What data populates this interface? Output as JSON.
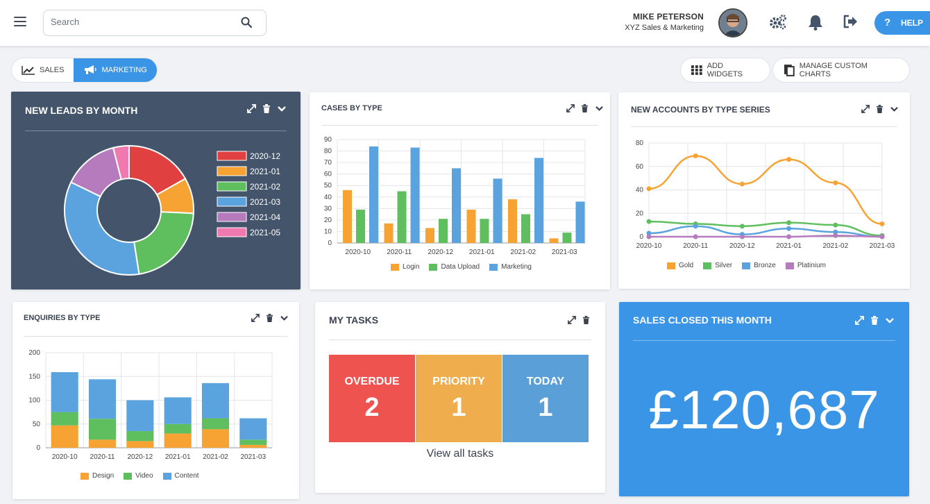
{
  "header": {
    "search_placeholder": "Search",
    "user_name": "MIKE PETERSON",
    "company": "XYZ Sales & Marketing",
    "help_label": "HELP"
  },
  "toolbar": {
    "tabs": [
      {
        "label": "SALES"
      },
      {
        "label": "MARKETING"
      }
    ],
    "add_widgets": "ADD WIDGETS",
    "manage_charts": "MANAGE CUSTOM CHARTS"
  },
  "widgets": {
    "leads": {
      "title": "NEW LEADS BY MONTH"
    },
    "cases": {
      "title": "CASES BY TYPE"
    },
    "accounts": {
      "title": "NEW ACCOUNTS BY TYPE SERIES"
    },
    "enquiries": {
      "title": "ENQUIRIES BY TYPE"
    },
    "tasks": {
      "title": "MY TASKS",
      "items": [
        {
          "label": "OVERDUE",
          "count": "2",
          "color": "#ef5350"
        },
        {
          "label": "PRIORITY",
          "count": "1",
          "color": "#f0ad4e"
        },
        {
          "label": "TODAY",
          "count": "1",
          "color": "#5b9fd9"
        }
      ],
      "view_all": "View all tasks"
    },
    "sales": {
      "title": "SALES CLOSED THIS MONTH",
      "value": "£120,687"
    }
  },
  "chart_data": [
    {
      "type": "pie",
      "labels": [
        "2020-12",
        "2021-01",
        "2021-02",
        "2021-03",
        "2021-04",
        "2021-05"
      ],
      "values": [
        17,
        9,
        22,
        35,
        14,
        4
      ],
      "colors": [
        "#e04040",
        "#f7a334",
        "#5fbf5f",
        "#5aa3de",
        "#b57bbd",
        "#f07ab0"
      ]
    },
    {
      "type": "bar",
      "categories": [
        "2020-10",
        "2020-11",
        "2020-12",
        "2021-01",
        "2021-02",
        "2021-03"
      ],
      "ylim": [
        0,
        90
      ],
      "yticks": [
        "0",
        "10",
        "20",
        "30",
        "40",
        "50",
        "60",
        "70",
        "80",
        "90"
      ],
      "series": [
        {
          "name": "Login",
          "color": "#f7a334",
          "values": [
            46,
            17,
            13,
            29,
            38,
            4
          ]
        },
        {
          "name": "Data Upload",
          "color": "#5fbf5f",
          "values": [
            29,
            45,
            21,
            21,
            25,
            9
          ]
        },
        {
          "name": "Marketing",
          "color": "#5aa3de",
          "values": [
            84,
            83,
            65,
            56,
            74,
            36
          ]
        }
      ]
    },
    {
      "type": "line",
      "categories": [
        "2020-10",
        "2020-11",
        "2020-12",
        "2021-01",
        "2021-02",
        "2021-03"
      ],
      "ylim": [
        0,
        80
      ],
      "yticks": [
        "0",
        "20",
        "40",
        "60",
        "80"
      ],
      "series": [
        {
          "name": "Gold",
          "color": "#f7a334",
          "values": [
            41,
            69,
            45,
            66,
            46,
            11
          ]
        },
        {
          "name": "Silver",
          "color": "#5fbf5f",
          "values": [
            13,
            11,
            9,
            12,
            10,
            1
          ]
        },
        {
          "name": "Bronze",
          "color": "#5aa3de",
          "values": [
            3,
            9,
            2,
            7,
            4,
            0
          ]
        },
        {
          "name": "Platinium",
          "color": "#b57bbd",
          "values": [
            0,
            0,
            0,
            0,
            1,
            0
          ]
        }
      ]
    },
    {
      "type": "bar",
      "stacked": true,
      "categories": [
        "2020-10",
        "2020-11",
        "2020-12",
        "2021-01",
        "2021-02",
        "2021-03"
      ],
      "ylim": [
        0,
        200
      ],
      "yticks": [
        "0",
        "50",
        "100",
        "150",
        "200"
      ],
      "series": [
        {
          "name": "Design",
          "color": "#f7a334",
          "values": [
            47,
            17,
            14,
            30,
            39,
            6
          ]
        },
        {
          "name": "Video",
          "color": "#5fbf5f",
          "values": [
            28,
            44,
            21,
            20,
            23,
            11
          ]
        },
        {
          "name": "Content",
          "color": "#5aa3de",
          "values": [
            84,
            83,
            65,
            56,
            74,
            45
          ]
        }
      ]
    }
  ]
}
